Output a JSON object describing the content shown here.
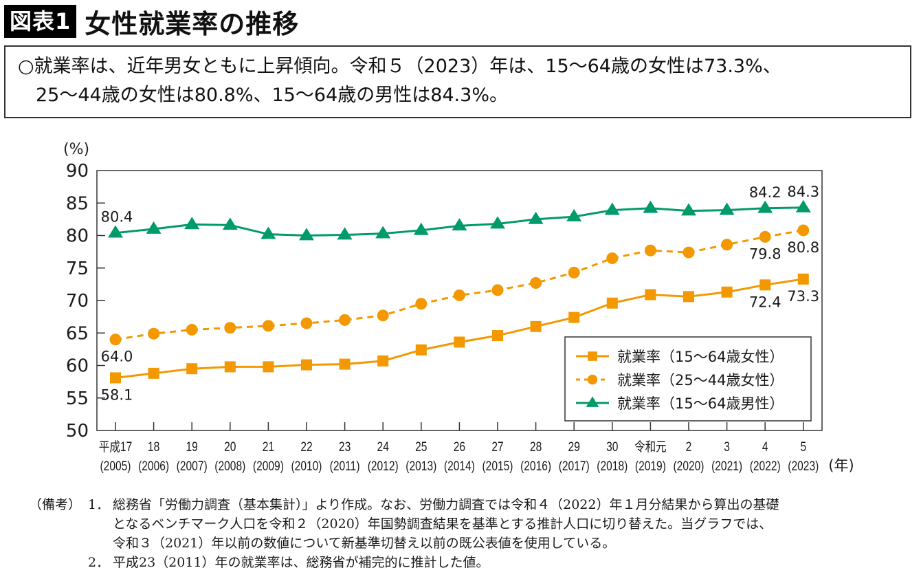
{
  "header": {
    "figure_label": "図表1",
    "title": "女性就業率の推移"
  },
  "summary": {
    "line1": "○就業率は、近年男女ともに上昇傾向。令和５（2023）年は、15〜64歳の女性は73.3%、",
    "line2": "25〜44歳の女性は80.8%、15〜64歳の男性は84.3%。"
  },
  "colors": {
    "orange": "#f39800",
    "green": "#009a6b",
    "axis": "#333333"
  },
  "chart_data": {
    "type": "line",
    "title": "女性就業率の推移",
    "ylabel": "(%)",
    "xlabel": "(年)",
    "ylim": [
      50,
      90
    ],
    "yticks": [
      50,
      55,
      60,
      65,
      70,
      75,
      80,
      85,
      90
    ],
    "grid": false,
    "legend_position": "bottom-right",
    "categories": [
      "平成17",
      "18",
      "19",
      "20",
      "21",
      "22",
      "23",
      "24",
      "25",
      "26",
      "27",
      "28",
      "29",
      "30",
      "令和元",
      "2",
      "3",
      "4",
      "5"
    ],
    "categories_western": [
      "(2005)",
      "(2006)",
      "(2007)",
      "(2008)",
      "(2009)",
      "(2010)",
      "(2011)",
      "(2012)",
      "(2013)",
      "(2014)",
      "(2015)",
      "(2016)",
      "(2017)",
      "(2018)",
      "(2019)",
      "(2020)",
      "(2021)",
      "(2022)",
      "(2023)"
    ],
    "series": [
      {
        "name": "就業率（15〜64歳女性）",
        "color": "#f39800",
        "marker": "square",
        "dash": false,
        "values": [
          58.1,
          58.8,
          59.5,
          59.8,
          59.8,
          60.1,
          60.2,
          60.7,
          62.4,
          63.6,
          64.6,
          66.0,
          67.4,
          69.6,
          70.9,
          70.6,
          71.3,
          72.4,
          73.3
        ],
        "labels": [
          {
            "index": 0,
            "text": "58.1",
            "pos": "below"
          },
          {
            "index": 17,
            "text": "72.4",
            "pos": "below"
          },
          {
            "index": 18,
            "text": "73.3",
            "pos": "below"
          }
        ]
      },
      {
        "name": "就業率（25〜44歳女性）",
        "color": "#f39800",
        "marker": "circle",
        "dash": true,
        "values": [
          64.0,
          64.9,
          65.5,
          65.8,
          66.1,
          66.5,
          67.0,
          67.7,
          69.5,
          70.8,
          71.6,
          72.7,
          74.3,
          76.5,
          77.7,
          77.4,
          78.6,
          79.8,
          80.8
        ],
        "labels": [
          {
            "index": 0,
            "text": "64.0",
            "pos": "below"
          },
          {
            "index": 17,
            "text": "79.8",
            "pos": "below"
          },
          {
            "index": 18,
            "text": "80.8",
            "pos": "below"
          }
        ]
      },
      {
        "name": "就業率（15〜64歳男性）",
        "color": "#009a6b",
        "marker": "triangle",
        "dash": false,
        "values": [
          80.4,
          81.0,
          81.7,
          81.6,
          80.2,
          80.0,
          80.1,
          80.3,
          80.8,
          81.5,
          81.8,
          82.5,
          82.9,
          83.9,
          84.2,
          83.8,
          83.9,
          84.2,
          84.3
        ],
        "labels": [
          {
            "index": 0,
            "text": "80.4",
            "pos": "above"
          },
          {
            "index": 17,
            "text": "84.2",
            "pos": "above"
          },
          {
            "index": 18,
            "text": "84.3",
            "pos": "above"
          }
        ]
      }
    ]
  },
  "notes": {
    "head": "（備考）",
    "items": [
      {
        "num": "1．",
        "lines": [
          "総務省「労働力調査（基本集計）」より作成。なお、労働力調査では令和４（2022）年１月分結果から算出の基礎",
          "となるベンチマーク人口を令和２（2020）年国勢調査結果を基準とする推計人口に切り替えた。当グラフでは、",
          "令和３（2021）年以前の数値について新基準切替え以前の既公表値を使用している。"
        ]
      },
      {
        "num": "2．",
        "lines": [
          "平成23（2011）年の就業率は、総務省が補完的に推計した値。"
        ]
      }
    ]
  }
}
